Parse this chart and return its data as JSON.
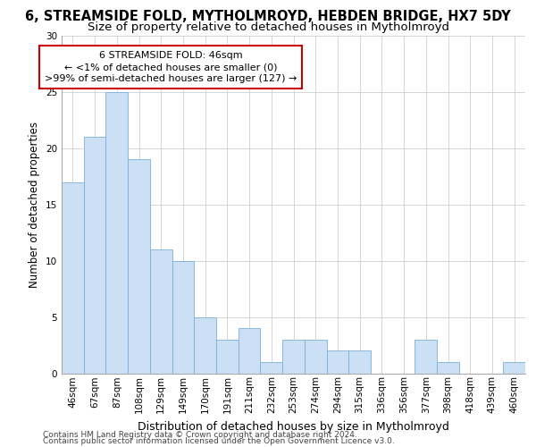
{
  "title1": "6, STREAMSIDE FOLD, MYTHOLMROYD, HEBDEN BRIDGE, HX7 5DY",
  "title2": "Size of property relative to detached houses in Mytholmroyd",
  "xlabel": "Distribution of detached houses by size in Mytholmroyd",
  "ylabel": "Number of detached properties",
  "categories": [
    "46sqm",
    "67sqm",
    "87sqm",
    "108sqm",
    "129sqm",
    "149sqm",
    "170sqm",
    "191sqm",
    "211sqm",
    "232sqm",
    "253sqm",
    "274sqm",
    "294sqm",
    "315sqm",
    "336sqm",
    "356sqm",
    "377sqm",
    "398sqm",
    "418sqm",
    "439sqm",
    "460sqm"
  ],
  "values": [
    17,
    21,
    25,
    19,
    11,
    10,
    5,
    3,
    4,
    1,
    3,
    3,
    2,
    2,
    0,
    0,
    3,
    1,
    0,
    0,
    1
  ],
  "bar_color": "#cce0f5",
  "bar_edge_color": "#7ab0d8",
  "annotation_text": "6 STREAMSIDE FOLD: 46sqm\n← <1% of detached houses are smaller (0)\n>99% of semi-detached houses are larger (127) →",
  "annotation_box_color": "#ffffff",
  "annotation_box_edge_color": "#cc0000",
  "ylim": [
    0,
    30
  ],
  "yticks": [
    0,
    5,
    10,
    15,
    20,
    25,
    30
  ],
  "background_color": "#ffffff",
  "grid_color": "#d0d0d0",
  "footer_line1": "Contains HM Land Registry data © Crown copyright and database right 2024.",
  "footer_line2": "Contains public sector information licensed under the Open Government Licence v3.0.",
  "title1_fontsize": 10.5,
  "title2_fontsize": 9.5,
  "xlabel_fontsize": 9,
  "ylabel_fontsize": 8.5,
  "tick_fontsize": 7.5,
  "footer_fontsize": 6.5,
  "annotation_fontsize": 8
}
